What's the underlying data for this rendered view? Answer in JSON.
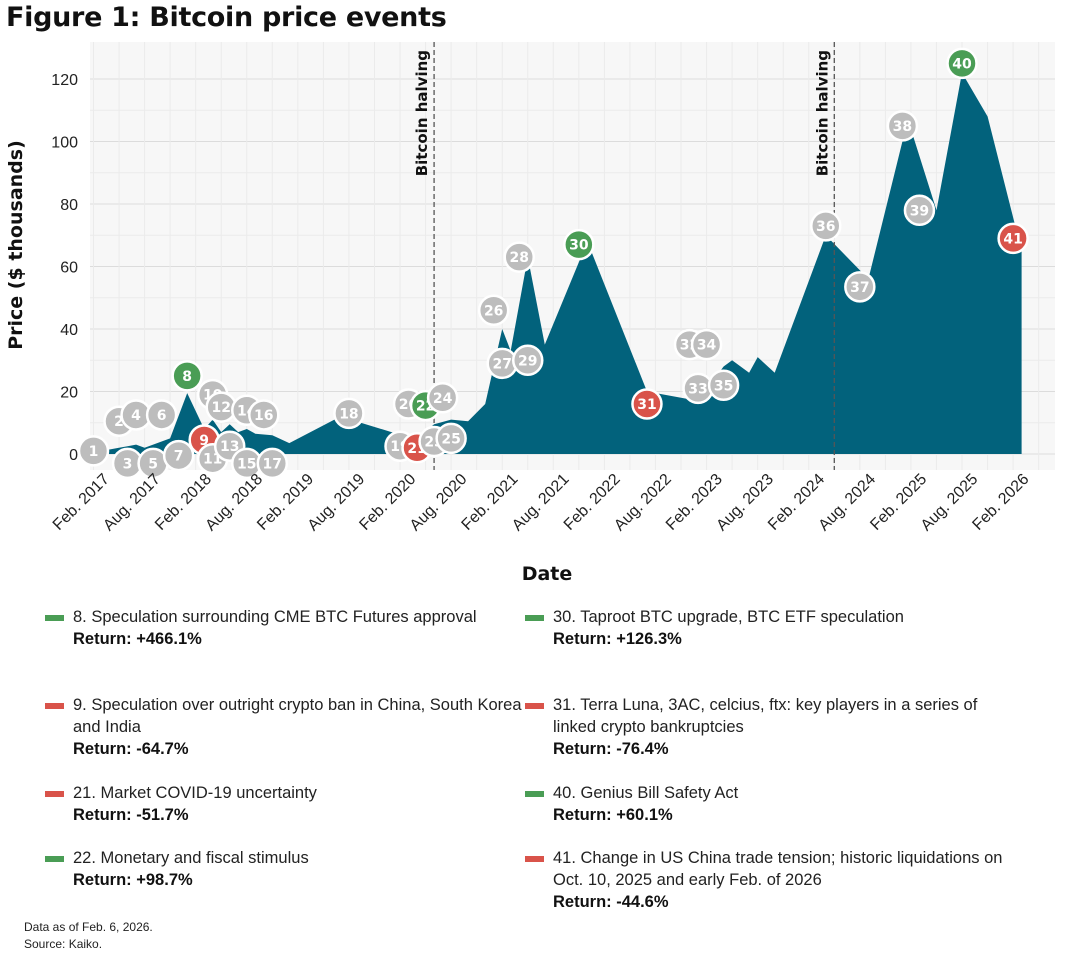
{
  "title": "Figure 1: Bitcoin price events",
  "chart_data": {
    "type": "area",
    "xlabel": "Date",
    "ylabel": "Price ($ thousands)",
    "ylim": [
      0,
      128
    ],
    "yticks": [
      0,
      20,
      40,
      60,
      80,
      100,
      120
    ],
    "xticks": [
      "Feb. 2017",
      "Aug. 2017",
      "Feb. 2018",
      "Aug. 2018",
      "Feb. 2019",
      "Aug. 2019",
      "Feb. 2020",
      "Aug. 2020",
      "Feb. 2021",
      "Aug. 2021",
      "Feb. 2022",
      "Aug. 2022",
      "Feb. 2023",
      "Aug. 2023",
      "Feb. 2024",
      "Aug. 2024",
      "Feb. 2025",
      "Aug. 2025",
      "Feb. 2026"
    ],
    "grid": true,
    "area_color": "#02627c",
    "series": [
      {
        "x": [
          "2017-02",
          "2017-04",
          "2017-05",
          "2017-06",
          "2017-07",
          "2017-09",
          "2017-10",
          "2017-12",
          "2018-02",
          "2018-03",
          "2018-04",
          "2018-05",
          "2018-06",
          "2018-07",
          "2018-08",
          "2018-10",
          "2018-12",
          "2019-06",
          "2019-12",
          "2020-03",
          "2020-05",
          "2020-07",
          "2020-09",
          "2020-11",
          "2021-01",
          "2021-02",
          "2021-04",
          "2021-06",
          "2021-11",
          "2022-06",
          "2022-12",
          "2023-03",
          "2023-04",
          "2023-06",
          "2023-07",
          "2023-09",
          "2024-03",
          "2024-08",
          "2024-12",
          "2025-01",
          "2025-04",
          "2025-07",
          "2025-10",
          "2026-02"
        ],
        "y": [
          1,
          2,
          2.5,
          3,
          2,
          4,
          5,
          19.5,
          8,
          11,
          7,
          9.5,
          7,
          8,
          6.5,
          6,
          3.5,
          12,
          7,
          5,
          9.5,
          11,
          10.5,
          16,
          40,
          33,
          63,
          35,
          68,
          20,
          17,
          28,
          30,
          26,
          31,
          26,
          70,
          56,
          100,
          104,
          78,
          122,
          108,
          65
        ]
      }
    ],
    "markers": [
      {
        "n": "1",
        "date": "2017-01",
        "y": 1,
        "kind": "neutral"
      },
      {
        "n": "2",
        "date": "2017-04",
        "y": 10.5,
        "kind": "neutral"
      },
      {
        "n": "3",
        "date": "2017-05",
        "y": -3,
        "kind": "neutral"
      },
      {
        "n": "4",
        "date": "2017-06",
        "y": 12.5,
        "kind": "neutral"
      },
      {
        "n": "5",
        "date": "2017-08",
        "y": -3,
        "kind": "neutral"
      },
      {
        "n": "6",
        "date": "2017-09",
        "y": 12.5,
        "kind": "neutral"
      },
      {
        "n": "7",
        "date": "2017-11",
        "y": -0.5,
        "kind": "neutral"
      },
      {
        "n": "8",
        "date": "2017-12",
        "y": 25,
        "kind": "positive"
      },
      {
        "n": "9",
        "date": "2018-02",
        "y": 4.5,
        "kind": "negative"
      },
      {
        "n": "10",
        "date": "2018-03",
        "y": 19,
        "kind": "neutral"
      },
      {
        "n": "11",
        "date": "2018-03",
        "y": -1.5,
        "kind": "neutral"
      },
      {
        "n": "12",
        "date": "2018-04",
        "y": 15,
        "kind": "neutral"
      },
      {
        "n": "13",
        "date": "2018-05",
        "y": 2.5,
        "kind": "neutral"
      },
      {
        "n": "14",
        "date": "2018-07",
        "y": 14,
        "kind": "neutral"
      },
      {
        "n": "15",
        "date": "2018-07",
        "y": -3,
        "kind": "neutral"
      },
      {
        "n": "16",
        "date": "2018-09",
        "y": 12.5,
        "kind": "neutral"
      },
      {
        "n": "17",
        "date": "2018-10",
        "y": -3,
        "kind": "neutral"
      },
      {
        "n": "18",
        "date": "2019-07",
        "y": 13,
        "kind": "neutral"
      },
      {
        "n": "19",
        "date": "2020-01",
        "y": 2.5,
        "kind": "neutral"
      },
      {
        "n": "20",
        "date": "2020-02",
        "y": 16,
        "kind": "neutral"
      },
      {
        "n": "21",
        "date": "2020-03",
        "y": 2,
        "kind": "negative"
      },
      {
        "n": "22",
        "date": "2020-04",
        "y": 15.5,
        "kind": "positive"
      },
      {
        "n": "23",
        "date": "2020-05",
        "y": 4,
        "kind": "neutral"
      },
      {
        "n": "24",
        "date": "2020-06",
        "y": 18,
        "kind": "neutral"
      },
      {
        "n": "25",
        "date": "2020-07",
        "y": 5,
        "kind": "neutral"
      },
      {
        "n": "26",
        "date": "2020-12",
        "y": 46,
        "kind": "neutral"
      },
      {
        "n": "27",
        "date": "2021-01",
        "y": 29,
        "kind": "neutral"
      },
      {
        "n": "28",
        "date": "2021-03",
        "y": 63,
        "kind": "neutral"
      },
      {
        "n": "29",
        "date": "2021-04",
        "y": 30,
        "kind": "neutral"
      },
      {
        "n": "30",
        "date": "2021-10",
        "y": 67,
        "kind": "positive"
      },
      {
        "n": "31",
        "date": "2022-06",
        "y": 16,
        "kind": "negative"
      },
      {
        "n": "32",
        "date": "2022-11",
        "y": 35,
        "kind": "neutral"
      },
      {
        "n": "33",
        "date": "2022-12",
        "y": 21,
        "kind": "neutral"
      },
      {
        "n": "34",
        "date": "2023-01",
        "y": 35,
        "kind": "neutral"
      },
      {
        "n": "35",
        "date": "2023-03",
        "y": 22,
        "kind": "neutral"
      },
      {
        "n": "36",
        "date": "2024-03",
        "y": 73,
        "kind": "neutral"
      },
      {
        "n": "37",
        "date": "2024-07",
        "y": 53.5,
        "kind": "neutral"
      },
      {
        "n": "38",
        "date": "2024-12",
        "y": 105,
        "kind": "neutral"
      },
      {
        "n": "39",
        "date": "2025-02",
        "y": 78,
        "kind": "neutral"
      },
      {
        "n": "40",
        "date": "2025-07",
        "y": 125,
        "kind": "positive"
      },
      {
        "n": "41",
        "date": "2026-01",
        "y": 69,
        "kind": "negative"
      }
    ],
    "marker_colors": {
      "neutral": "#bdbdbd",
      "positive": "#4a9d55",
      "negative": "#d9534a"
    },
    "annotations": [
      {
        "text": "Bitcoin halving",
        "date": "2020-05"
      },
      {
        "text": "Bitcoin halving",
        "date": "2024-04"
      }
    ]
  },
  "events": [
    {
      "id": "8",
      "text": "8. Speculation surrounding CME BTC Futures approval",
      "ret": "Return: +466.1%",
      "kind": "positive"
    },
    {
      "id": "9",
      "text": "9. Speculation over outright crypto ban in China, South Korea and India",
      "ret": "Return: -64.7%",
      "kind": "negative"
    },
    {
      "id": "21",
      "text": "21. Market COVID-19 uncertainty",
      "ret": "Return: -51.7%",
      "kind": "negative"
    },
    {
      "id": "22",
      "text": "22. Monetary and fiscal stimulus",
      "ret": "Return: +98.7%",
      "kind": "positive"
    },
    {
      "id": "30",
      "text": "30. Taproot BTC upgrade, BTC ETF speculation",
      "ret": "Return: +126.3%",
      "kind": "positive"
    },
    {
      "id": "31",
      "text": "31. Terra Luna, 3AC, celcius, ftx: key players in a series of linked crypto bankruptcies",
      "ret": "Return: -76.4%",
      "kind": "negative"
    },
    {
      "id": "40",
      "text": "40. Genius Bill Safety Act",
      "ret": "Return: +60.1%",
      "kind": "positive"
    },
    {
      "id": "41",
      "text": "41. Change in US China trade tension; historic liquidations on Oct. 10, 2025 and early Feb. of 2026",
      "ret": "Return: -44.6%",
      "kind": "negative"
    }
  ],
  "footer": {
    "line1": "Data as of Feb. 6, 2026.",
    "line2": "Source: Kaiko."
  }
}
